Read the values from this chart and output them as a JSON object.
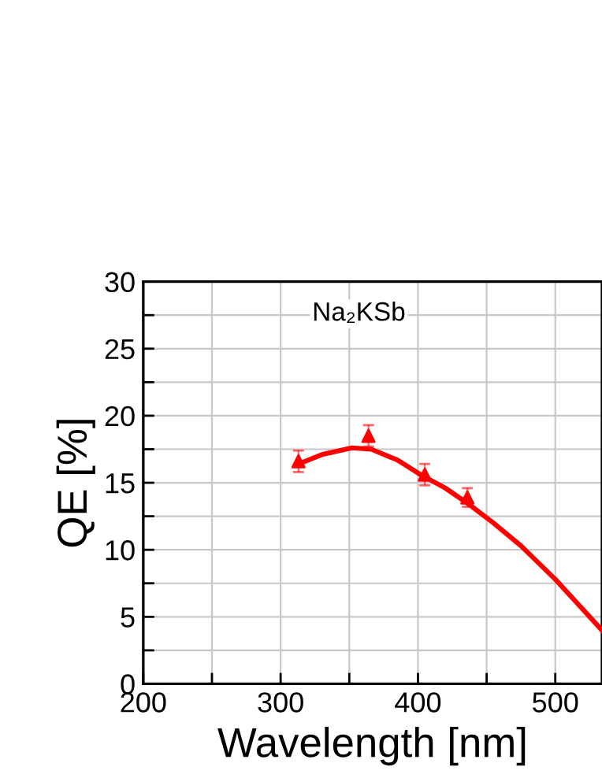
{
  "chart_data": {
    "type": "scatter",
    "xlabel": "Wavelength [nm]",
    "ylabel": "QE [%]",
    "annotations": [
      "Na₂KSb"
    ],
    "series": [
      {
        "color": "#ff0000",
        "marker": "triangle",
        "x": [
          313,
          364,
          405,
          436
        ],
        "values": [
          16.6,
          18.5,
          15.6,
          13.9
        ],
        "errors": [
          0.8,
          0.8,
          0.8,
          0.7
        ]
      },
      {
        "type": "line",
        "color": "#ff0000",
        "marker": "none",
        "line_style": "solid",
        "x": [
          313,
          330,
          352,
          366,
          385,
          402,
          420,
          437,
          455,
          475,
          500,
          534
        ],
        "values": [
          16.4,
          17.1,
          17.6,
          17.5,
          16.7,
          15.6,
          14.6,
          13.4,
          12.0,
          10.3,
          7.8,
          4.0
        ]
      }
    ],
    "xlim": [
      200,
      534
    ],
    "ylim": [
      0,
      30
    ],
    "xticks": [
      200,
      {
        "value": 250,
        "label": null
      },
      300,
      {
        "value": 350,
        "label": null
      },
      400,
      {
        "value": 450,
        "label": null
      },
      500
    ],
    "yticks": [
      0,
      {
        "value": 2.5,
        "label": null
      },
      5,
      {
        "value": 7.5,
        "label": null
      },
      10,
      {
        "value": 12.5,
        "label": null
      },
      15,
      {
        "value": 17.5,
        "label": null
      },
      20,
      {
        "value": 22.5,
        "label": null
      },
      25,
      {
        "value": 27.5,
        "label": null
      },
      30
    ],
    "grid": true,
    "legend": false
  }
}
